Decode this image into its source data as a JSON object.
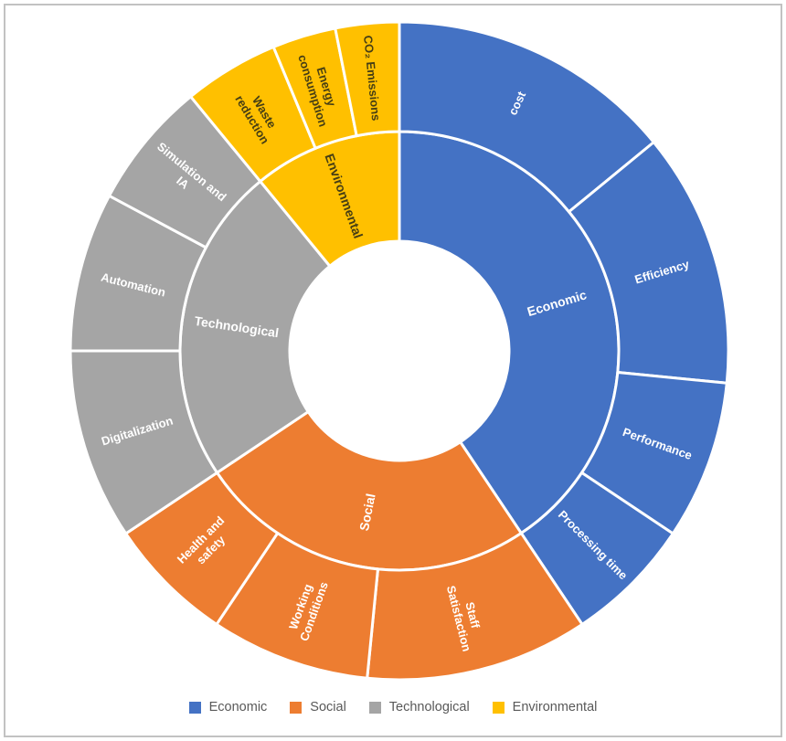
{
  "figure": {
    "background": "#ffffff",
    "frame_border_color": "#c2c2c2"
  },
  "chart_data": {
    "type": "sunburst",
    "title": "",
    "rings": 2,
    "direction": "clockwise",
    "start_angle_deg": 0,
    "legend": {
      "position": "bottom",
      "entries": [
        "Economic",
        "Social",
        "Technological",
        "Environmental"
      ]
    },
    "text_colors": {
      "on_blue": "#ffffff",
      "on_orange": "#ffffff",
      "on_gray": "#ffffff",
      "on_yellow": "#463e14",
      "legend": "#595959"
    },
    "gap_color": "#ffffff",
    "categories": [
      {
        "name": "Economic",
        "color": "#4472C4",
        "label_color": "#ffffff",
        "children": [
          {
            "name": "cost",
            "value": 9,
            "label_lines": [
              "cost"
            ]
          },
          {
            "name": "Efficiency",
            "value": 8,
            "label_lines": [
              "Efficiency"
            ]
          },
          {
            "name": "Performance",
            "value": 5,
            "label_lines": [
              "Performance"
            ]
          },
          {
            "name": "Processing time",
            "value": 4,
            "label_lines": [
              "Processing time"
            ]
          }
        ]
      },
      {
        "name": "Social",
        "color": "#ED7D31",
        "label_color": "#ffffff",
        "children": [
          {
            "name": "Staff Satisfaction",
            "value": 7,
            "label_lines": [
              "Staff",
              "Satisfaction"
            ]
          },
          {
            "name": "Working Conditions",
            "value": 5,
            "label_lines": [
              "Working",
              "Conditions"
            ]
          },
          {
            "name": "Health and safety",
            "value": 4,
            "label_lines": [
              "Health and",
              "safety"
            ]
          }
        ]
      },
      {
        "name": "Technological",
        "color": "#A5A5A5",
        "label_color": "#ffffff",
        "children": [
          {
            "name": "Digitalization",
            "value": 6,
            "label_lines": [
              "Digitalization"
            ]
          },
          {
            "name": "Automation",
            "value": 5,
            "label_lines": [
              "Automation"
            ]
          },
          {
            "name": "Simulation and IA",
            "value": 4,
            "label_lines": [
              "Simulation and",
              "IA"
            ]
          }
        ]
      },
      {
        "name": "Environmental",
        "color": "#FFC000",
        "label_color": "#463e14",
        "children": [
          {
            "name": "Waste reduction",
            "value": 3,
            "label_lines": [
              "Waste",
              "reduction"
            ]
          },
          {
            "name": "Energy consumption",
            "value": 2,
            "label_lines": [
              "Energy",
              "consumption"
            ]
          },
          {
            "name": "CO₂ Emissions",
            "value": 2,
            "label_lines": [
              "CO₂ Emissions"
            ]
          }
        ]
      }
    ]
  }
}
